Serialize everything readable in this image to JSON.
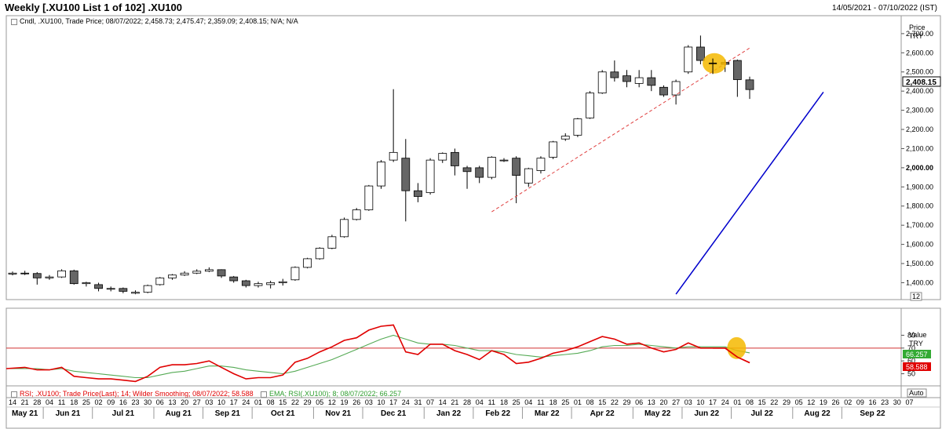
{
  "header": {
    "title": "Weekly [.XU100 List 1 of 102] .XU100",
    "date_range": "14/05/2021 - 07/10/2022 (IST)"
  },
  "price_panel": {
    "info": ".XU100, Trade Price; 08/07/2022; 2,458.73; 2,475.47; 2,359.09; 2,408.15; N/A; N/A",
    "info_label": "Cndl",
    "axis_title": "Price",
    "axis_unit": "TRY",
    "last_price_label": "2,408.15",
    "count_label": "12"
  },
  "rsi_panel": {
    "rsi_info": "RSI; .XU100; Trade Price(Last); 14; Wilder Smoothing; 08/07/2022; 58.588",
    "ema_info": "EMA; RSI(.XU100); 8; 08/07/2022; 66.257",
    "axis_title": "Value",
    "axis_unit": "TRY",
    "ema_last_label": "66.257",
    "rsi_last_label": "58.588",
    "auto_label": "Auto"
  },
  "colors": {
    "up_candle_fill": "#ffffff",
    "down_candle_fill": "#666666",
    "trendline": "#0000cc",
    "dashed_trendline": "#e04040",
    "rsi_line": "#e00000",
    "ema_line": "#55aa55",
    "highlight": "#f5b800",
    "ema_badge": "#33aa33",
    "rsi_badge": "#e00000"
  },
  "chart_data": [
    {
      "type": "candlestick",
      "title": "Weekly [.XU100 List 1 of 102] .XU100",
      "ylabel": "Price TRY",
      "ylim": [
        1320,
        2720
      ],
      "yticks": [
        1400,
        1500,
        1600,
        1700,
        1800,
        1900,
        2000,
        2100,
        2200,
        2300,
        2400,
        2500,
        2600,
        2700
      ],
      "ytick_labels": [
        "1,400.00",
        "1,500.00",
        "1,600.00",
        "1,700.00",
        "1,800.00",
        "1,900.00",
        "2,000.00",
        "2,100.00",
        "2,200.00",
        "2,300.00",
        "2,400.00",
        "2,500.00",
        "2,600.00",
        "2,700.00"
      ],
      "x_day_ticks": [
        "14",
        "21",
        "28",
        "04",
        "11",
        "18",
        "25",
        "02",
        "09",
        "16",
        "23",
        "30",
        "06",
        "13",
        "20",
        "27",
        "03",
        "10",
        "17",
        "24",
        "01",
        "08",
        "15",
        "22",
        "29",
        "05",
        "12",
        "19",
        "26",
        "03",
        "10",
        "17",
        "24",
        "31",
        "07",
        "14",
        "21",
        "28",
        "04",
        "11",
        "18",
        "25",
        "04",
        "11",
        "18",
        "25",
        "01",
        "08",
        "15",
        "22",
        "29",
        "06",
        "13",
        "20",
        "27",
        "03",
        "10",
        "17",
        "24",
        "01",
        "08",
        "15",
        "22",
        "29",
        "05",
        "12",
        "19",
        "26",
        "02",
        "09",
        "16",
        "23",
        "30",
        "07"
      ],
      "x_month_labels": [
        "May 21",
        "Jun 21",
        "Jul 21",
        "Aug 21",
        "Sep 21",
        "Oct 21",
        "Nov 21",
        "Dec 21",
        "Jan 22",
        "Feb 22",
        "Mar 22",
        "Apr 22",
        "May 22",
        "Jun 22",
        "Jul 22",
        "Aug 22",
        "Sep 22"
      ],
      "ohlc": [
        [
          1445,
          1458,
          1438,
          1450
        ],
        [
          1450,
          1462,
          1440,
          1448
        ],
        [
          1448,
          1455,
          1390,
          1425
        ],
        [
          1425,
          1440,
          1415,
          1430
        ],
        [
          1430,
          1470,
          1425,
          1462
        ],
        [
          1462,
          1468,
          1390,
          1395
        ],
        [
          1395,
          1405,
          1380,
          1400
        ],
        [
          1390,
          1400,
          1355,
          1370
        ],
        [
          1370,
          1380,
          1355,
          1370
        ],
        [
          1370,
          1375,
          1345,
          1355
        ],
        [
          1345,
          1360,
          1340,
          1350
        ],
        [
          1350,
          1390,
          1345,
          1385
        ],
        [
          1390,
          1430,
          1385,
          1425
        ],
        [
          1425,
          1445,
          1415,
          1440
        ],
        [
          1440,
          1460,
          1435,
          1450
        ],
        [
          1450,
          1470,
          1445,
          1460
        ],
        [
          1460,
          1480,
          1455,
          1468
        ],
        [
          1468,
          1470,
          1425,
          1435
        ],
        [
          1430,
          1435,
          1400,
          1410
        ],
        [
          1410,
          1415,
          1375,
          1385
        ],
        [
          1385,
          1405,
          1375,
          1395
        ],
        [
          1390,
          1410,
          1370,
          1400
        ],
        [
          1400,
          1420,
          1385,
          1405
        ],
        [
          1415,
          1485,
          1410,
          1480
        ],
        [
          1480,
          1530,
          1475,
          1525
        ],
        [
          1525,
          1585,
          1520,
          1580
        ],
        [
          1580,
          1650,
          1575,
          1640
        ],
        [
          1640,
          1740,
          1635,
          1730
        ],
        [
          1730,
          1790,
          1725,
          1780
        ],
        [
          1780,
          1910,
          1775,
          1905
        ],
        [
          1905,
          2040,
          1890,
          2030
        ],
        [
          2040,
          2410,
          2030,
          2080
        ],
        [
          2050,
          2150,
          1720,
          1880
        ],
        [
          1880,
          1920,
          1820,
          1850
        ],
        [
          1870,
          2050,
          1860,
          2040
        ],
        [
          2040,
          2080,
          2025,
          2075
        ],
        [
          2080,
          2100,
          1960,
          2010
        ],
        [
          2000,
          2010,
          1890,
          1980
        ],
        [
          2000,
          2010,
          1920,
          1950
        ],
        [
          1950,
          2060,
          1940,
          2055
        ],
        [
          2040,
          2050,
          2030,
          2040
        ],
        [
          2050,
          2060,
          1815,
          1960
        ],
        [
          1920,
          2000,
          1900,
          1995
        ],
        [
          1985,
          2060,
          1970,
          2050
        ],
        [
          2055,
          2140,
          2045,
          2135
        ],
        [
          2150,
          2180,
          2140,
          2165
        ],
        [
          2170,
          2260,
          2160,
          2255
        ],
        [
          2260,
          2400,
          2255,
          2390
        ],
        [
          2390,
          2510,
          2385,
          2500
        ],
        [
          2500,
          2560,
          2450,
          2470
        ],
        [
          2480,
          2510,
          2420,
          2450
        ],
        [
          2440,
          2510,
          2420,
          2470
        ],
        [
          2470,
          2510,
          2400,
          2430
        ],
        [
          2420,
          2430,
          2370,
          2380
        ],
        [
          2380,
          2460,
          2330,
          2450
        ],
        [
          2500,
          2640,
          2490,
          2630
        ],
        [
          2630,
          2690,
          2540,
          2560
        ],
        [
          2545,
          2570,
          2490,
          2545
        ],
        [
          2550,
          2565,
          2500,
          2540
        ],
        [
          2560,
          2565,
          2370,
          2460
        ],
        [
          2458.73,
          2475.47,
          2359.09,
          2408.15
        ]
      ],
      "trendline": {
        "from": [
          "27",
          1340
        ],
        "to": [
          "25",
          1820
        ],
        "extends_to": [
          "19",
          2395
        ]
      },
      "dashed_trendline": {
        "from": [
          "25",
          1770
        ],
        "to": [
          "01",
          2625
        ]
      },
      "highlight_near": [
        "17",
        2545
      ]
    },
    {
      "type": "line",
      "ylabel": "Value TRY",
      "ylim": [
        32,
        98
      ],
      "yticks": [
        50,
        60,
        70,
        80
      ],
      "reference_line": 70,
      "series": [
        {
          "name": "RSI",
          "values": [
            54,
            55,
            53,
            53,
            55,
            48,
            47,
            46,
            46,
            45,
            44,
            48,
            55,
            57,
            57,
            58,
            60,
            55,
            50,
            46,
            47,
            47,
            49,
            59,
            62,
            67,
            71,
            76,
            78,
            84,
            87,
            88,
            67,
            65,
            73,
            73,
            68,
            65,
            61,
            68,
            65,
            58,
            59,
            62,
            66,
            68,
            71,
            75,
            79,
            77,
            73,
            74,
            70,
            67,
            69,
            74,
            70,
            70,
            70,
            63,
            58.588
          ]
        },
        {
          "name": "EMA",
          "values": [
            54,
            54,
            54,
            53,
            54,
            52,
            51,
            50,
            49,
            48,
            47,
            47,
            49,
            51,
            52,
            54,
            56,
            56,
            55,
            53,
            52,
            51,
            50,
            52,
            55,
            58,
            61,
            65,
            69,
            73,
            77,
            80,
            77,
            74,
            73,
            73,
            72,
            70,
            68,
            68,
            67,
            65,
            64,
            63,
            64,
            65,
            66,
            68,
            71,
            72,
            72,
            73,
            72,
            71,
            70,
            71,
            71,
            71,
            71,
            68,
            66.257
          ]
        }
      ]
    }
  ]
}
